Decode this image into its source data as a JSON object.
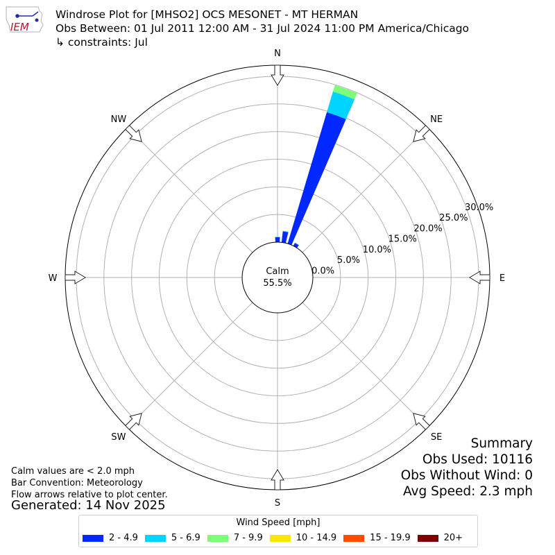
{
  "header": {
    "title": "Windrose Plot for [MHSO2] OCS MESONET - MT HERMAN",
    "obs_between": "Obs Between: 01 Jul 2011 12:00 AM - 31 Jul 2024 11:00 PM America/Chicago",
    "constraints": "↳ constraints: Jul",
    "logo_text": "IEM"
  },
  "notes": {
    "calm_note": "Calm values are < 2.0 mph",
    "bar_convention": "Bar Convention: Meteorology",
    "flow_arrows": "Flow arrows relative to plot center.",
    "generated": "Generated: 14 Nov 2025"
  },
  "summary": {
    "title": "Summary",
    "obs_used": "Obs Used: 10116",
    "obs_without_wind": "Obs Without Wind: 0",
    "avg_speed": "Avg Speed: 2.3 mph"
  },
  "legend": {
    "title": "Wind Speed [mph]",
    "items": [
      {
        "label": "2 - 4.9",
        "color": "#0028ff"
      },
      {
        "label": "5 - 6.9",
        "color": "#00d4ff"
      },
      {
        "label": "7 - 9.9",
        "color": "#7cff79"
      },
      {
        "label": "10 - 14.9",
        "color": "#ffe600"
      },
      {
        "label": "15 - 19.9",
        "color": "#ff4a00"
      },
      {
        "label": "20+",
        "color": "#7f0000"
      }
    ]
  },
  "chart_data": {
    "type": "windrose",
    "calm_label": "Calm",
    "calm_percent": "55.5%",
    "directions": [
      "N",
      "NE",
      "E",
      "SE",
      "S",
      "SW",
      "W",
      "NW"
    ],
    "radial_ticks": [
      "0.0%",
      "5.0%",
      "10.0%",
      "15.0%",
      "20.0%",
      "25.0%",
      "30.0%"
    ],
    "rlim": [
      0,
      32
    ],
    "grid": true,
    "bins": [
      {
        "direction_deg": 0,
        "values": [
          0.9,
          0.05,
          0,
          0,
          0,
          0
        ]
      },
      {
        "direction_deg": 10,
        "values": [
          2.0,
          0.1,
          0.05,
          0,
          0,
          0
        ]
      },
      {
        "direction_deg": 20,
        "values": [
          24.8,
          3.9,
          1.2,
          0,
          0,
          0
        ]
      },
      {
        "direction_deg": 30,
        "values": [
          0.6,
          0.05,
          0,
          0,
          0,
          0
        ]
      }
    ]
  }
}
